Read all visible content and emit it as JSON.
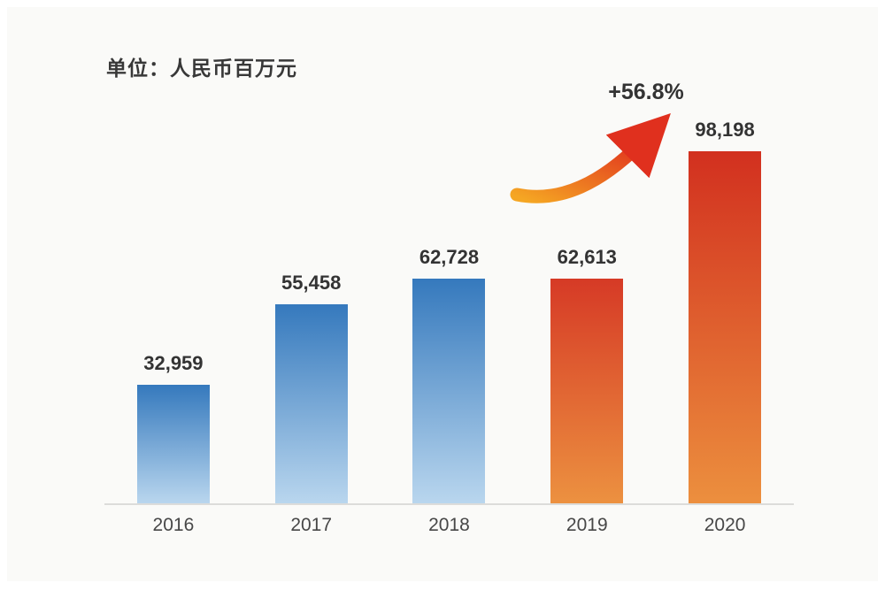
{
  "chart_data": {
    "type": "bar",
    "unit_label": "单位：人民币百万元",
    "categories": [
      "2016",
      "2017",
      "2018",
      "2019",
      "2020"
    ],
    "values": [
      32959,
      55458,
      62728,
      62613,
      98198
    ],
    "value_labels": [
      "32,959",
      "55,458",
      "62,728",
      "62,613",
      "98,198"
    ],
    "title": "",
    "xlabel": "",
    "ylabel": "人民币百万元",
    "ylim": [
      0,
      100000
    ],
    "grid": false,
    "legend": "none",
    "bar_colors": [
      {
        "top": "#3579bd",
        "bottom": "#b9d6ee"
      },
      {
        "top": "#3579bd",
        "bottom": "#b9d6ee"
      },
      {
        "top": "#3579bd",
        "bottom": "#b9d6ee"
      },
      {
        "top": "#d63a26",
        "bottom": "#ec9140"
      },
      {
        "top": "#d2301f",
        "bottom": "#ec8f3e"
      }
    ],
    "annotation": {
      "text": "+56.8%",
      "from_category": "2019",
      "to_category": "2020"
    },
    "colors": {
      "axis_line": "#dcdcda",
      "label_text": "#333333",
      "arrow_start": "#f5a623",
      "arrow_end": "#e0301e"
    }
  }
}
